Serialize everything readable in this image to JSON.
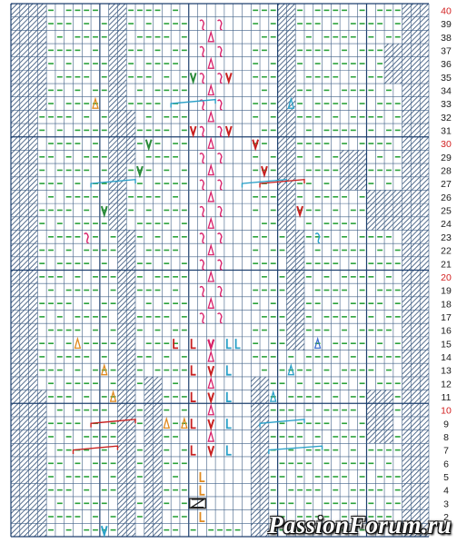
{
  "chart": {
    "rows": 40,
    "cols": 47,
    "row_numbers": [
      "1",
      "2",
      "3",
      "4",
      "5",
      "6",
      "7",
      "8",
      "9",
      "10",
      "11",
      "12",
      "13",
      "14",
      "15",
      "16",
      "17",
      "18",
      "19",
      "20",
      "21",
      "22",
      "23",
      "24",
      "25",
      "26",
      "27",
      "28",
      "29",
      "30",
      "31",
      "32",
      "33",
      "34",
      "35",
      "36",
      "37",
      "38",
      "39",
      "40"
    ],
    "highlight_rows": [
      10,
      20,
      30,
      40
    ],
    "colors": {
      "grid": "#3f5f86",
      "grid_major": "#1d3f6e",
      "purl_dash": "#2aa23a",
      "hatch": "#2b4a72",
      "row_label": "#1a1a1a",
      "row_label_highlight": "#d22020",
      "cable_pink": "#d8206a",
      "cable_red": "#c82020",
      "cable_cyan": "#2aa0c8",
      "cable_orange": "#e08a20",
      "cable_blue": "#4070d0",
      "cable_green": "#2a8a3a",
      "cable_black": "#202020"
    },
    "symbols_legend": [
      {
        "key": "purl",
        "icon": "dash-icon"
      },
      {
        "key": "knit",
        "icon": "empty-cell"
      },
      {
        "key": "no_stitch",
        "icon": "hatch-cell"
      },
      {
        "key": "increase_v",
        "icon": "v-icon"
      },
      {
        "key": "decrease_triangle",
        "icon": "triangle-icon"
      },
      {
        "key": "twist",
        "icon": "twist-icon"
      },
      {
        "key": "cable_bracket",
        "icon": "bracket-icon"
      }
    ]
  },
  "watermark": {
    "text": "PassionForum.ru"
  }
}
